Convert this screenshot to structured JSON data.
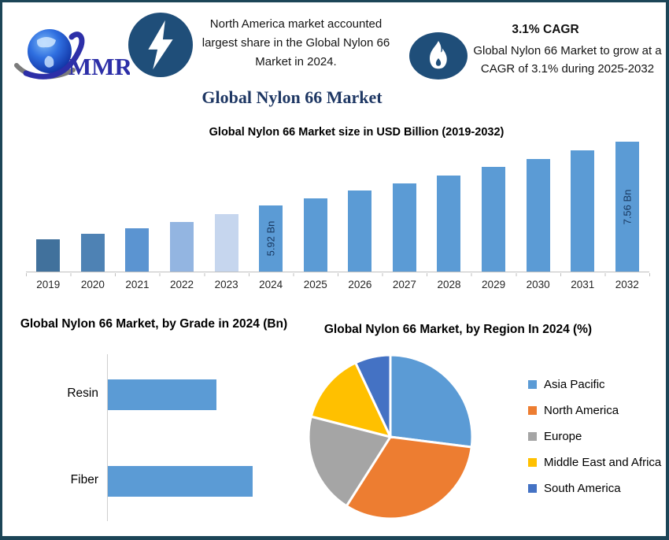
{
  "window": {
    "border_color": "#1c4557",
    "background": "#ffffff"
  },
  "header": {
    "logo": {
      "text": "MMR",
      "icon": "globe-icon"
    },
    "bolt_icon": "lightning-bolt-icon",
    "flame_icon": "flame-icon",
    "highlight_note": "North America market accounted largest share in the Global Nylon 66 Market in 2024.",
    "cagr_heading": "3.1% CAGR",
    "cagr_note": "Global Nylon 66 Market to grow at a CAGR of 3.1% during 2025-2032"
  },
  "main_title": "Global Nylon 66 Market",
  "colors": {
    "accent_dark_blue": "#1f4e79",
    "title_navy": "#1f3864",
    "bar_blue": "#5b9bd5",
    "frame_border": "#1c4557"
  },
  "chart_data": [
    {
      "type": "bar",
      "title": "Global Nylon 66 Market size in USD Billion (2019-2032)",
      "xlabel": "",
      "ylabel": "USD Billion",
      "categories": [
        "2019",
        "2020",
        "2021",
        "2022",
        "2023",
        "2024",
        "2025",
        "2026",
        "2027",
        "2028",
        "2029",
        "2030",
        "2031",
        "2032"
      ],
      "values": [
        5.03,
        5.18,
        5.33,
        5.49,
        5.68,
        5.92,
        6.1,
        6.29,
        6.49,
        6.69,
        6.9,
        7.11,
        7.33,
        7.56
      ],
      "data_labels": [
        "",
        "",
        "",
        "",
        "",
        "5.92 Bn",
        "",
        "",
        "",
        "",
        "",
        "",
        "",
        "7.56 Bn"
      ],
      "bar_colors": [
        "#41719c",
        "#4e82b4",
        "#5b94d1",
        "#93b5e1",
        "#c6d6ee",
        "#5b9bd5",
        "#5b9bd5",
        "#5b9bd5",
        "#5b9bd5",
        "#5b9bd5",
        "#5b9bd5",
        "#5b9bd5",
        "#5b9bd5",
        "#5b9bd5"
      ],
      "ylim": [
        4.2,
        7.6
      ],
      "grid": false,
      "label_color": "#17365d"
    },
    {
      "type": "bar",
      "orientation": "horizontal",
      "title": "Global Nylon 66 Market, by Grade in 2024 (Bn)",
      "categories": [
        "Resin",
        "Fiber"
      ],
      "values_pct_of_max": [
        75,
        100
      ],
      "bar_color": "#5b9bd5",
      "grid": false
    },
    {
      "type": "pie",
      "title": "Global Nylon 66 Market, by Region In 2024 (%)",
      "labels": [
        "Asia Pacific",
        "North America",
        "Europe",
        "Middle East and Africa",
        "South America"
      ],
      "values_pct": [
        27,
        32,
        20,
        14,
        7
      ],
      "colors": [
        "#5b9bd5",
        "#ed7d31",
        "#a5a5a5",
        "#ffc000",
        "#4472c4"
      ],
      "legend_position": "right",
      "start_angle_deg": 0,
      "slice_gap_color": "#ffffff"
    }
  ]
}
